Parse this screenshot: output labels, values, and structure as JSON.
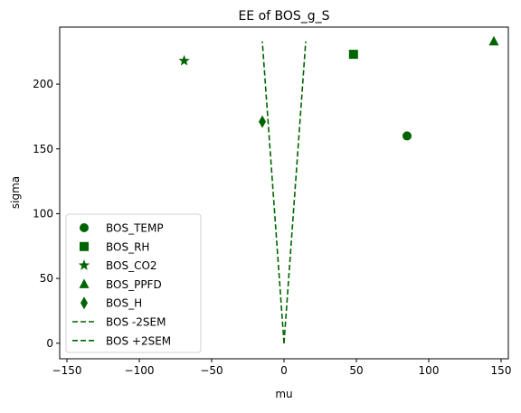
{
  "chart_data": {
    "type": "scatter",
    "title": "EE of BOS_g_S",
    "xlabel": "mu",
    "ylabel": "sigma",
    "xlim": [
      -155,
      155
    ],
    "ylim": [
      -12,
      244
    ],
    "xticks": [
      -150,
      -100,
      -50,
      0,
      50,
      100,
      150
    ],
    "yticks": [
      0,
      50,
      100,
      150,
      200
    ],
    "grid": false,
    "legend_position": "lower-left",
    "color": "#006400",
    "points": [
      {
        "name": "BOS_TEMP",
        "marker": "circle",
        "x": 85,
        "y": 160
      },
      {
        "name": "BOS_RH",
        "marker": "square",
        "x": 48,
        "y": 223
      },
      {
        "name": "BOS_CO2",
        "marker": "star",
        "x": -69,
        "y": 218
      },
      {
        "name": "BOS_PPFD",
        "marker": "triangle",
        "x": 145,
        "y": 233
      },
      {
        "name": "BOS_H",
        "marker": "diamond",
        "x": -15,
        "y": 171
      }
    ],
    "lines": [
      {
        "name": "BOS -2SEM",
        "style": "dashed",
        "x": [
          0,
          -15
        ],
        "y": [
          0,
          233
        ]
      },
      {
        "name": "BOS +2SEM",
        "style": "dashed",
        "x": [
          0,
          15
        ],
        "y": [
          0,
          233
        ]
      }
    ]
  }
}
